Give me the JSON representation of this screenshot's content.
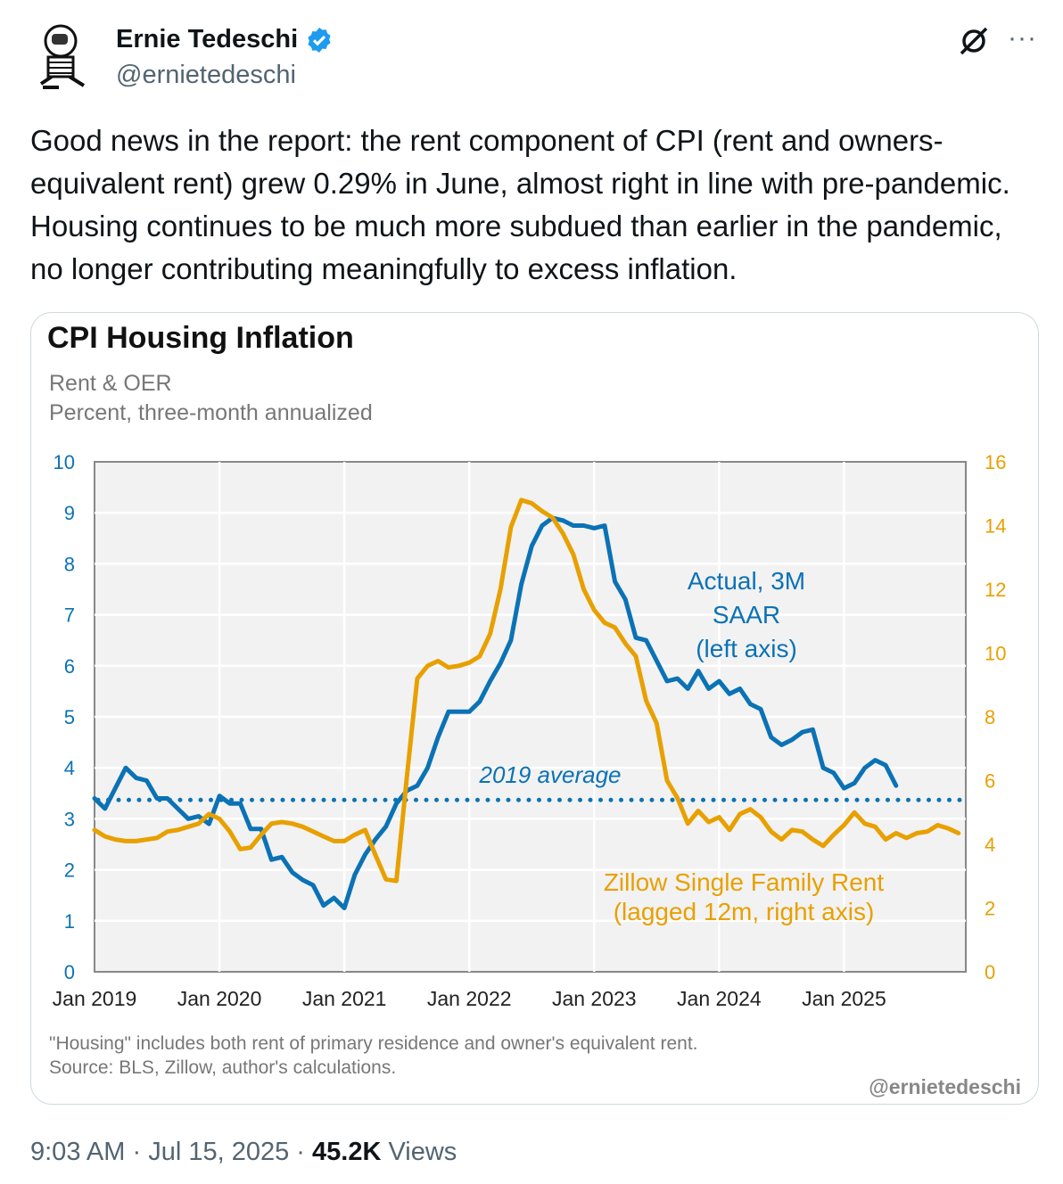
{
  "tweet": {
    "author_name": "Ernie Tedeschi",
    "author_handle": "@ernietedeschi",
    "text": "Good news in the report: the rent component of CPI (rent and owners-equivalent rent) grew 0.29% in June, almost right in line with pre-pandemic. Housing continues to be much more subdued than earlier in the pandemic, no longer contributing meaningfully to excess inflation.",
    "time": "9:03 AM",
    "date": "Jul 15, 2025",
    "views_count": "45.2K",
    "views_label": "Views",
    "separator": "·",
    "more_label": "···"
  },
  "colors": {
    "blue": "#0b72b5",
    "orange": "#e8a000",
    "verified": "#1d9bf0",
    "plot_bg": "#f2f2f2"
  },
  "chart_data": {
    "type": "line",
    "title": "CPI Housing Inflation",
    "subtitle1": "Rent & OER",
    "subtitle2": "Percent, three-month annualized",
    "x_start": "2019-01",
    "x_unit": "month",
    "x_range_months": [
      0,
      83.7
    ],
    "xtick_labels": [
      "Jan 2019",
      "Jan 2020",
      "Jan 2021",
      "Jan 2022",
      "Jan 2023",
      "Jan 2024",
      "Jan 2025"
    ],
    "ylim_left": [
      0,
      10
    ],
    "yticks_left": [
      "0",
      "1",
      "2",
      "3",
      "4",
      "5",
      "6",
      "7",
      "8",
      "9",
      "10"
    ],
    "ylim_right": [
      0,
      16
    ],
    "yticks_right": [
      "0",
      "2",
      "4",
      "6",
      "8",
      "10",
      "12",
      "14",
      "16"
    ],
    "grid": true,
    "series": [
      {
        "name": "Actual, 3M SAAR (left axis)",
        "label_lines": [
          "Actual, 3M",
          "SAAR",
          "(left axis)"
        ],
        "axis": "left",
        "values": [
          3.4,
          3.2,
          3.6,
          4.0,
          3.8,
          3.75,
          3.4,
          3.4,
          3.2,
          3.0,
          3.05,
          2.9,
          3.45,
          3.3,
          3.3,
          2.8,
          2.8,
          2.2,
          2.25,
          1.95,
          1.8,
          1.7,
          1.3,
          1.45,
          1.25,
          1.9,
          2.3,
          2.6,
          2.85,
          3.3,
          3.55,
          3.65,
          4.0,
          4.6,
          5.1,
          5.1,
          5.1,
          5.3,
          5.7,
          6.05,
          6.5,
          7.6,
          8.35,
          8.75,
          8.9,
          8.85,
          8.75,
          8.75,
          8.7,
          8.75,
          7.65,
          7.3,
          6.55,
          6.5,
          6.1,
          5.7,
          5.75,
          5.55,
          5.9,
          5.55,
          5.7,
          5.45,
          5.55,
          5.25,
          5.15,
          4.6,
          4.45,
          4.55,
          4.7,
          4.75,
          4.0,
          3.9,
          3.6,
          3.7,
          4.0,
          4.15,
          4.05,
          3.65
        ]
      },
      {
        "name": "Zillow Single Family Rent (lagged 12m, right axis)",
        "label_lines": [
          "Zillow Single Family Rent",
          "(lagged 12m, right axis)"
        ],
        "axis": "right",
        "values": [
          4.45,
          4.25,
          4.15,
          4.1,
          4.1,
          4.15,
          4.2,
          4.4,
          4.45,
          4.55,
          4.65,
          4.95,
          4.8,
          4.4,
          3.85,
          3.9,
          4.3,
          4.65,
          4.7,
          4.65,
          4.55,
          4.4,
          4.25,
          4.1,
          4.1,
          4.3,
          4.45,
          3.65,
          2.9,
          2.85,
          6.1,
          9.2,
          9.6,
          9.75,
          9.55,
          9.6,
          9.7,
          9.9,
          10.6,
          12.0,
          13.95,
          14.8,
          14.7,
          14.45,
          14.25,
          13.75,
          13.1,
          12.0,
          11.35,
          10.95,
          10.8,
          10.3,
          9.9,
          8.5,
          7.8,
          6.0,
          5.45,
          4.65,
          5.05,
          4.7,
          4.85,
          4.45,
          4.95,
          5.1,
          4.85,
          4.4,
          4.15,
          4.45,
          4.4,
          4.15,
          3.95,
          4.3,
          4.6,
          5.0,
          4.65,
          4.55,
          4.15,
          4.35,
          4.2,
          4.35,
          4.4,
          4.6,
          4.5,
          4.35
        ]
      }
    ],
    "reference_line": {
      "label": "2019 average",
      "value": 3.37,
      "axis": "left"
    },
    "note": "\"Housing\" includes both rent of primary residence and owner's equivalent rent.",
    "source": "Source: BLS, Zillow, author's calculations.",
    "watermark": "@ernietedeschi"
  }
}
